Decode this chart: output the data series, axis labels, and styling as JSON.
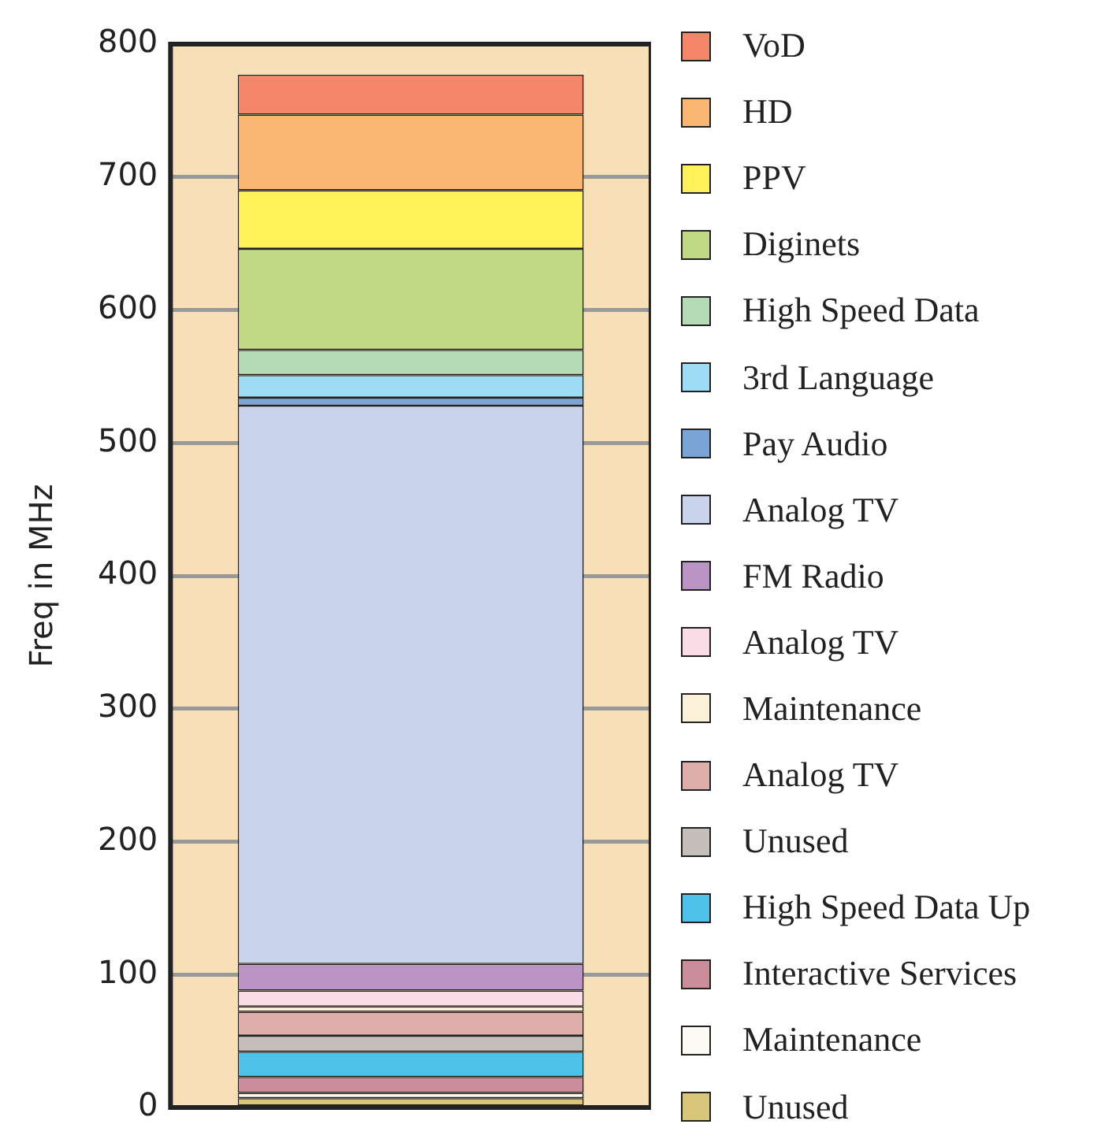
{
  "chart_data": {
    "type": "bar",
    "ylabel": "Freq in MHz",
    "categories": [
      null
    ],
    "stacked": true,
    "ylim": [
      0,
      800
    ],
    "yticks": [
      0,
      100,
      200,
      300,
      400,
      500,
      600,
      700,
      800
    ],
    "grid": "y",
    "legend": "right",
    "series": [
      {
        "name": "Unused",
        "color": "#d8c67a",
        "values": [
          7
        ]
      },
      {
        "name": "Maintenance",
        "color": "#fdfaf3",
        "values": [
          4
        ]
      },
      {
        "name": "Interactive Services",
        "color": "#cc8d9a",
        "values": [
          12
        ]
      },
      {
        "name": "High Speed Data Up",
        "color": "#4dc2e8",
        "values": [
          19
        ]
      },
      {
        "name": "Unused",
        "color": "#c4bfbb",
        "values": [
          12
        ]
      },
      {
        "name": "Analog TV",
        "color": "#deaeab",
        "values": [
          18
        ]
      },
      {
        "name": "Maintenance",
        "color": "#fbf0d8",
        "values": [
          4
        ]
      },
      {
        "name": "Analog TV",
        "color": "#f9dce6",
        "values": [
          12
        ]
      },
      {
        "name": "FM Radio",
        "color": "#b994c4",
        "values": [
          20
        ]
      },
      {
        "name": "Analog TV",
        "color": "#c9d3eb",
        "values": [
          420
        ]
      },
      {
        "name": "Pay Audio",
        "color": "#7aa3d6",
        "values": [
          6
        ]
      },
      {
        "name": "3rd Language",
        "color": "#9edcf5",
        "values": [
          17
        ]
      },
      {
        "name": "High Speed Data",
        "color": "#b5dbb6",
        "values": [
          19
        ]
      },
      {
        "name": "Diginets",
        "color": "#bfd985",
        "values": [
          76
        ]
      },
      {
        "name": "PPV",
        "color": "#fff159",
        "values": [
          44
        ]
      },
      {
        "name": "HD",
        "color": "#f9b771",
        "values": [
          57
        ]
      },
      {
        "name": "VoD",
        "color": "#f4876a",
        "values": [
          30
        ]
      }
    ]
  }
}
